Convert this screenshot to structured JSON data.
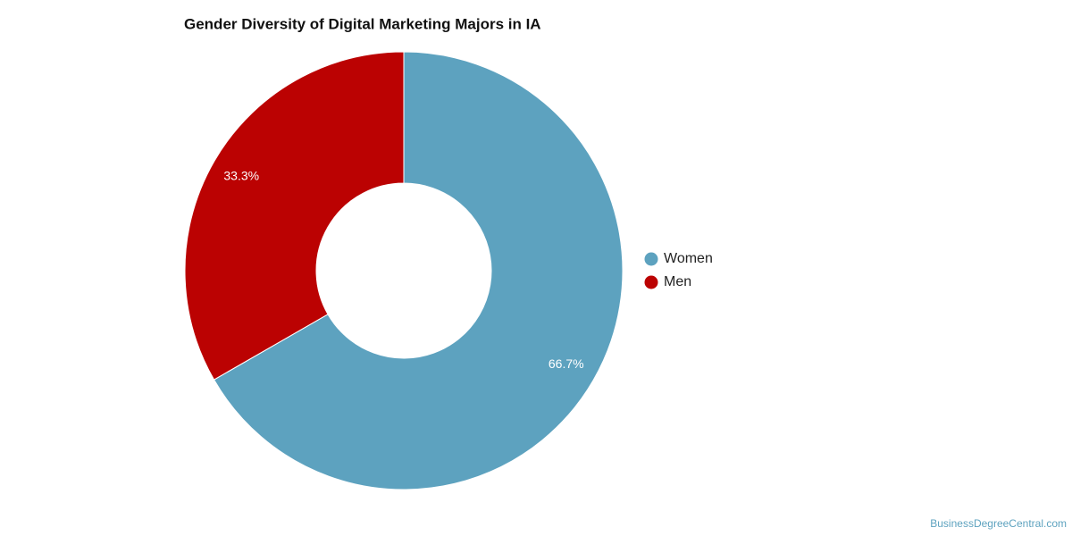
{
  "chart_data": {
    "type": "donut",
    "title": "Gender Diversity of Digital Marketing Majors in IA",
    "categories": [
      "Women",
      "Men"
    ],
    "values": [
      66.7,
      33.3
    ],
    "value_labels": [
      "66.7%",
      "33.3%"
    ],
    "colors": [
      "#5da2bf",
      "#bb0202"
    ],
    "legend": "right",
    "source": "BusinessDegreeCentral.com"
  }
}
